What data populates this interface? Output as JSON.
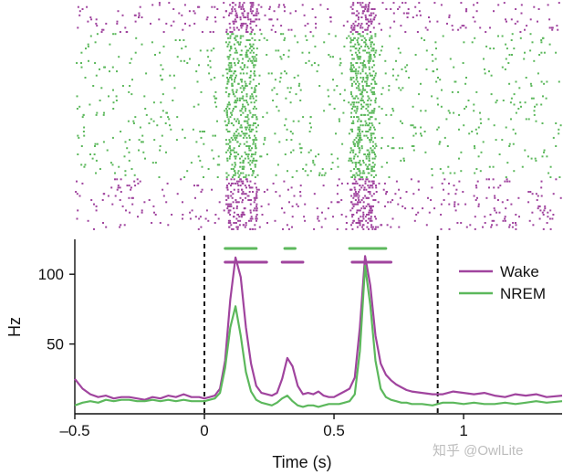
{
  "chart_data": {
    "type": "line",
    "xlabel": "Time (s)",
    "ylabel": "Hz",
    "xlim": [
      -0.5,
      1.38
    ],
    "ylim": [
      0,
      125
    ],
    "x_ticks": [
      {
        "value": -0.5,
        "label": "–0.5"
      },
      {
        "value": 0,
        "label": "0"
      },
      {
        "value": 0.5,
        "label": "0.5"
      },
      {
        "value": 1,
        "label": "1"
      }
    ],
    "y_ticks": [
      {
        "value": 50,
        "label": "50"
      },
      {
        "value": 100,
        "label": "100"
      }
    ],
    "markers_dashed": [
      0,
      0.9
    ],
    "colors": {
      "Wake": "#a0449e",
      "NREM": "#5cb85c"
    },
    "legend_position": "right",
    "series": [
      {
        "name": "Wake",
        "color": "#a0449e",
        "x": [
          -0.5,
          -0.47,
          -0.44,
          -0.41,
          -0.38,
          -0.35,
          -0.32,
          -0.29,
          -0.26,
          -0.23,
          -0.2,
          -0.17,
          -0.14,
          -0.11,
          -0.08,
          -0.05,
          -0.02,
          0.0,
          0.02,
          0.04,
          0.06,
          0.08,
          0.1,
          0.12,
          0.14,
          0.16,
          0.18,
          0.2,
          0.22,
          0.24,
          0.26,
          0.28,
          0.3,
          0.32,
          0.34,
          0.36,
          0.38,
          0.4,
          0.42,
          0.44,
          0.46,
          0.48,
          0.5,
          0.52,
          0.54,
          0.56,
          0.58,
          0.6,
          0.62,
          0.64,
          0.66,
          0.68,
          0.7,
          0.72,
          0.74,
          0.76,
          0.78,
          0.8,
          0.84,
          0.88,
          0.92,
          0.96,
          1.0,
          1.04,
          1.08,
          1.12,
          1.16,
          1.2,
          1.24,
          1.28,
          1.32,
          1.38
        ],
        "values": [
          25,
          18,
          14,
          12,
          13,
          11,
          12,
          12,
          11,
          10,
          12,
          11,
          13,
          12,
          14,
          12,
          12,
          11,
          12,
          13,
          18,
          38,
          82,
          112,
          98,
          62,
          36,
          20,
          15,
          14,
          13,
          15,
          25,
          40,
          34,
          20,
          14,
          15,
          14,
          16,
          13,
          12,
          12,
          14,
          16,
          18,
          26,
          62,
          113,
          92,
          56,
          36,
          28,
          24,
          21,
          19,
          17,
          16,
          15,
          14,
          14,
          16,
          15,
          14,
          15,
          13,
          12,
          14,
          13,
          14,
          12,
          13
        ]
      },
      {
        "name": "NREM",
        "color": "#5cb85c",
        "x": [
          -0.5,
          -0.47,
          -0.44,
          -0.41,
          -0.38,
          -0.35,
          -0.32,
          -0.29,
          -0.26,
          -0.23,
          -0.2,
          -0.17,
          -0.14,
          -0.11,
          -0.08,
          -0.05,
          -0.02,
          0.0,
          0.02,
          0.04,
          0.06,
          0.08,
          0.1,
          0.12,
          0.14,
          0.16,
          0.18,
          0.2,
          0.22,
          0.24,
          0.26,
          0.28,
          0.3,
          0.32,
          0.34,
          0.36,
          0.38,
          0.4,
          0.42,
          0.44,
          0.46,
          0.48,
          0.5,
          0.52,
          0.54,
          0.56,
          0.58,
          0.6,
          0.62,
          0.64,
          0.66,
          0.68,
          0.7,
          0.72,
          0.74,
          0.76,
          0.78,
          0.8,
          0.84,
          0.88,
          0.92,
          0.96,
          1.0,
          1.04,
          1.08,
          1.12,
          1.16,
          1.2,
          1.24,
          1.28,
          1.32,
          1.38
        ],
        "values": [
          6,
          8,
          9,
          8,
          10,
          9,
          10,
          10,
          9,
          9,
          10,
          9,
          10,
          9,
          10,
          9,
          9,
          9,
          10,
          11,
          15,
          33,
          62,
          77,
          56,
          30,
          16,
          10,
          8,
          7,
          6,
          8,
          11,
          13,
          9,
          6,
          5,
          6,
          6,
          5,
          6,
          7,
          7,
          7,
          8,
          9,
          14,
          45,
          106,
          78,
          38,
          18,
          12,
          10,
          9,
          8,
          8,
          7,
          7,
          6,
          8,
          8,
          7,
          8,
          7,
          7,
          8,
          7,
          8,
          9,
          8,
          9
        ]
      }
    ],
    "bars_above_trace": [
      {
        "series": "NREM",
        "start": 0.08,
        "end": 0.2
      },
      {
        "series": "Wake",
        "start": 0.08,
        "end": 0.24
      },
      {
        "series": "NREM",
        "start": 0.31,
        "end": 0.35
      },
      {
        "series": "Wake",
        "start": 0.3,
        "end": 0.38
      },
      {
        "series": "NREM",
        "start": 0.56,
        "end": 0.7
      },
      {
        "series": "Wake",
        "start": 0.57,
        "end": 0.72
      }
    ],
    "raster": {
      "description_units": "trial rows; spike times in seconds",
      "groups": [
        {
          "series": "Wake",
          "rows": 15,
          "position": "top"
        },
        {
          "series": "NREM",
          "rows": 70,
          "position": "middle"
        },
        {
          "series": "Wake",
          "rows": 25,
          "position": "bottom"
        }
      ],
      "burst_windows": [
        [
          0.08,
          0.2
        ],
        [
          0.56,
          0.66
        ]
      ]
    }
  },
  "watermark": "知乎 @OwlLite"
}
